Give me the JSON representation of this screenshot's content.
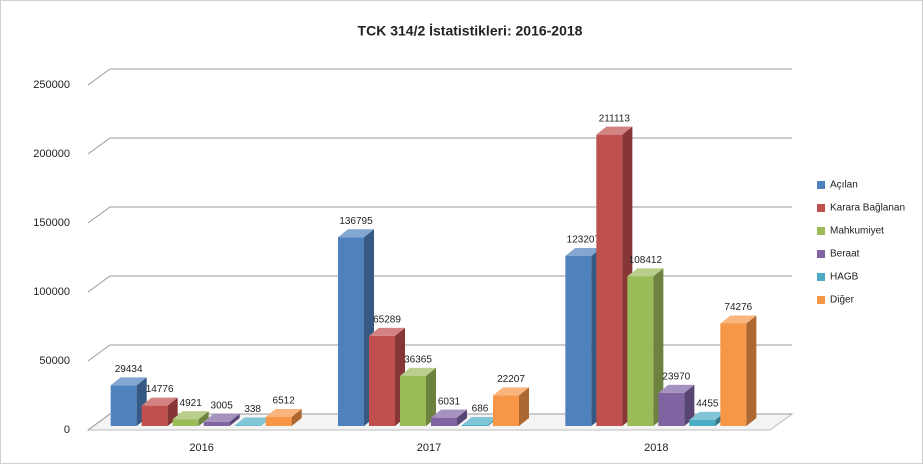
{
  "chart_data": {
    "type": "bar3d",
    "title": "TCK 314/2 İstatistikleri: 2016-2018",
    "categories": [
      "2016",
      "2017",
      "2018"
    ],
    "series": [
      {
        "name": "Açılan",
        "color": "#4f81bd",
        "values": [
          29434,
          136795,
          123207
        ]
      },
      {
        "name": "Karara Bağlanan",
        "color": "#c0504d",
        "values": [
          14776,
          65289,
          211113
        ]
      },
      {
        "name": "Mahkumiyet",
        "color": "#9bbb59",
        "values": [
          4921,
          36365,
          108412
        ]
      },
      {
        "name": "Beraat",
        "color": "#8064a2",
        "values": [
          3005,
          6031,
          23970
        ]
      },
      {
        "name": "HAGB",
        "color": "#4bacc6",
        "values": [
          338,
          686,
          4455
        ]
      },
      {
        "name": "Diğer",
        "color": "#f79646",
        "values": [
          6512,
          22207,
          74276
        ]
      }
    ],
    "ylim": [
      0,
      250000
    ],
    "yticks": [
      0,
      50000,
      100000,
      150000,
      200000,
      250000
    ],
    "grid": true,
    "legend": "right"
  }
}
